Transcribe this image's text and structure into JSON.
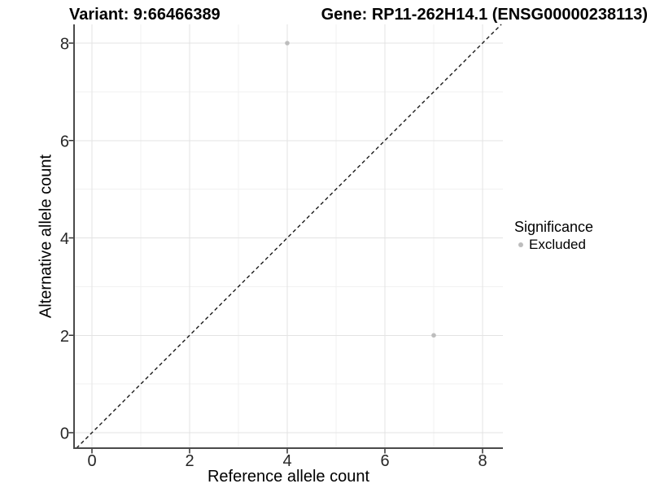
{
  "figure": {
    "title_left": "Variant: 9:66466389",
    "title_right": "Gene: RP11-262H14.1 (ENSG00000238113)"
  },
  "chart_data": {
    "type": "scatter",
    "title": "Variant: 9:66466389  Gene: RP11-262H14.1 (ENSG00000238113)",
    "xlabel": "Reference allele count",
    "ylabel": "Alternative allele count",
    "xlim": [
      -0.4,
      8.4
    ],
    "ylim": [
      -0.4,
      8.4
    ],
    "x_ticks": [
      0,
      2,
      4,
      6,
      8
    ],
    "y_ticks": [
      0,
      2,
      4,
      6,
      8
    ],
    "x_minor_ticks": [
      1,
      3,
      5,
      7
    ],
    "y_minor_ticks": [
      1,
      3,
      5,
      7
    ],
    "grid": "major+minor on white",
    "series": [
      {
        "name": "Excluded",
        "points": [
          {
            "x": 4,
            "y": 8
          },
          {
            "x": 7,
            "y": 2
          }
        ],
        "color": "#bdbdbd"
      }
    ],
    "identity_line": {
      "slope": 1,
      "intercept": 0,
      "style": "dashed",
      "color": "#1a1a1a"
    },
    "legend": {
      "title": "Significance",
      "position": "right",
      "items": [
        {
          "label": "Excluded",
          "color": "#bdbdbd"
        }
      ]
    },
    "colors": {
      "point": "#bdbdbd",
      "grid_major": "#e3e3e3",
      "grid_minor": "#f1f1f1",
      "axis_line": "#4a4a4a",
      "tick_mark": "#333333",
      "tick_label": "#262626"
    }
  }
}
